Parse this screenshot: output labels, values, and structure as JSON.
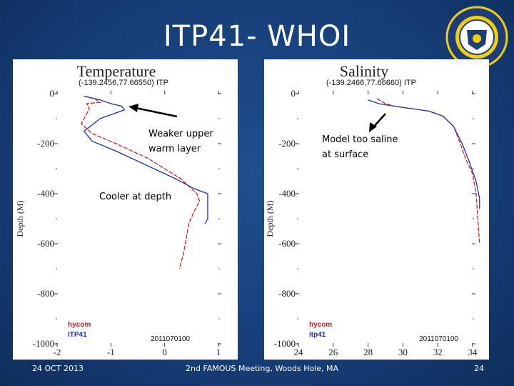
{
  "slide": {
    "title": "ITP41- WHOI",
    "footer_date": "24 OCT 2013",
    "footer_meeting": "2nd FAMOUS Meeting, Woods Hole, MA",
    "page_number": "24"
  },
  "colors": {
    "background": "#17407a",
    "hycom": "#cc2222",
    "itp": "#2233aa"
  },
  "chart_data": [
    {
      "type": "line",
      "title": "Temperature",
      "subtitle": "(-139.2456,77.66550) ITP",
      "ylabel": "Depth (M)",
      "xlim": [
        -2,
        1
      ],
      "ylim": [
        -1000,
        0
      ],
      "xticks": [
        "-2",
        "-1",
        "0",
        "1"
      ],
      "yticks": [
        "0",
        "-200",
        "-400",
        "-600",
        "-800",
        "-1000"
      ],
      "legend": [
        "hycom",
        "ITP41"
      ],
      "date_label": "2011070100",
      "annotations": [
        "Weaker upper warm layer",
        "Cooler at depth"
      ],
      "series": [
        {
          "name": "hycom",
          "color": "#cc2222",
          "x": [
            -1.5,
            -1.3,
            -1.2,
            -1.45,
            -1.4,
            -1.55,
            -1.35,
            -0.9,
            -0.3,
            0.3,
            0.6,
            0.65,
            0.55,
            0.45,
            0.4,
            0.35,
            0.3,
            0.28
          ],
          "y": [
            -10,
            -20,
            -35,
            -40,
            -60,
            -120,
            -160,
            -200,
            -260,
            -340,
            -400,
            -430,
            -470,
            -520,
            -580,
            -640,
            -680,
            -700
          ]
        },
        {
          "name": "ITP41",
          "color": "#2233aa",
          "x": [
            -1.5,
            -1.2,
            -1.0,
            -0.8,
            -0.75,
            -1.2,
            -1.5,
            -1.35,
            -0.9,
            -0.3,
            0.2,
            0.55,
            0.8,
            0.8,
            0.8,
            0.75
          ],
          "y": [
            -10,
            -25,
            -40,
            -50,
            -65,
            -100,
            -150,
            -190,
            -230,
            -290,
            -340,
            -380,
            -400,
            -440,
            -500,
            -520
          ]
        }
      ]
    },
    {
      "type": "line",
      "title": "Salinity",
      "subtitle": "(-139.2466,77.66660) ITP",
      "ylabel": "Depth (M)",
      "xlim": [
        24,
        34
      ],
      "ylim": [
        -1000,
        0
      ],
      "xticks": [
        "24",
        "26",
        "28",
        "30",
        "32",
        "34"
      ],
      "yticks": [
        "0",
        "-200",
        "-400",
        "-600",
        "-800",
        "-1000"
      ],
      "legend": [
        "hycom",
        "itp41"
      ],
      "date_label": "2011070100",
      "annotations": [
        "Model too saline at surface"
      ],
      "series": [
        {
          "name": "hycom",
          "color": "#cc2222",
          "x": [
            28.5,
            29.0,
            29.5,
            30.5,
            31.5,
            32.3,
            32.9,
            33.3,
            33.6,
            34.0,
            34.2,
            34.3,
            34.4
          ],
          "y": [
            -20,
            -40,
            -50,
            -60,
            -70,
            -90,
            -130,
            -200,
            -260,
            -320,
            -400,
            -500,
            -600
          ]
        },
        {
          "name": "itp41",
          "color": "#2233aa",
          "x": [
            28.0,
            28.6,
            29.5,
            30.5,
            31.5,
            32.3,
            32.9,
            33.4,
            33.8,
            34.2,
            34.4,
            34.4
          ],
          "y": [
            -25,
            -40,
            -50,
            -60,
            -70,
            -90,
            -130,
            -200,
            -270,
            -350,
            -420,
            -460
          ]
        }
      ]
    }
  ]
}
